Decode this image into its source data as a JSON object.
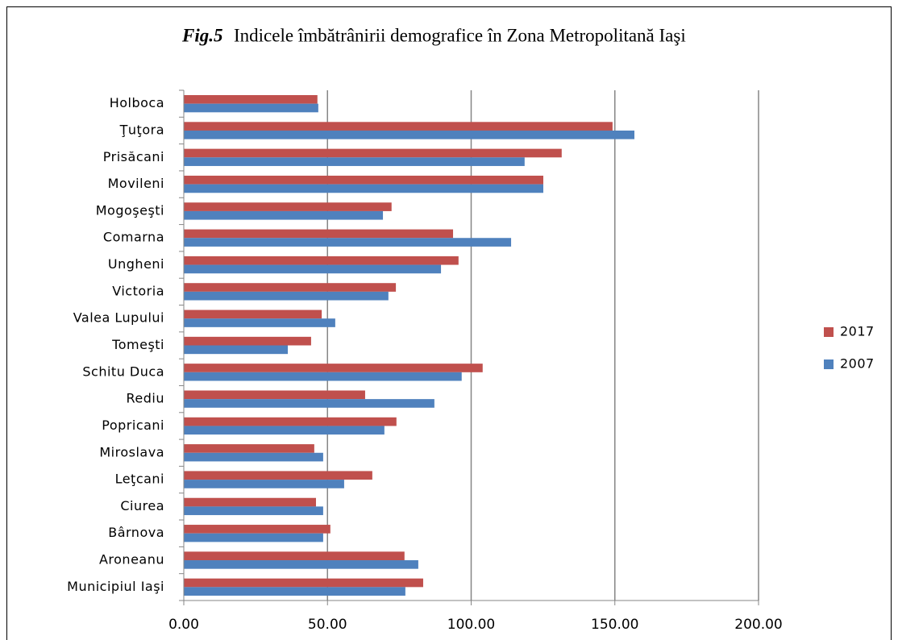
{
  "chart_data": {
    "type": "hbar",
    "title_prefix": "Fig.5",
    "title": "Indicele îmbătrânirii demografice în Zona Metropolitană Iaşi",
    "categories": [
      "Holboca",
      "Ţuţora",
      "Prisăcani",
      "Movileni",
      "Mogoşeşti",
      "Comarna",
      "Ungheni",
      "Victoria",
      "Valea Lupului",
      "Tomeşti",
      "Schitu Duca",
      "Rediu",
      "Popricani",
      "Miroslava",
      "Leţcani",
      "Ciurea",
      "Bârnova",
      "Aroneanu",
      "Municipiul Iaşi"
    ],
    "series": [
      {
        "name": "2017",
        "color": "#c0504d",
        "values": [
          46.5,
          149.2,
          131.5,
          125.1,
          72.3,
          93.7,
          95.6,
          73.8,
          48.0,
          44.3,
          104.0,
          63.1,
          74.0,
          45.4,
          65.6,
          46.0,
          51.0,
          76.8,
          83.3
        ]
      },
      {
        "name": "2007",
        "color": "#4f81bd",
        "values": [
          46.8,
          156.8,
          118.6,
          125.1,
          69.3,
          113.9,
          89.5,
          71.2,
          52.7,
          36.2,
          96.7,
          87.2,
          69.8,
          48.5,
          55.8,
          48.5,
          48.5,
          81.6,
          77.1
        ]
      }
    ],
    "xlim": [
      0,
      200
    ],
    "xticks": [
      {
        "value": 0,
        "label": "0.00"
      },
      {
        "value": 50,
        "label": "50.00"
      },
      {
        "value": 100,
        "label": "100.00"
      },
      {
        "value": 150,
        "label": "150.00"
      },
      {
        "value": 200,
        "label": "200.00"
      }
    ],
    "grid": true,
    "legend": "right"
  }
}
